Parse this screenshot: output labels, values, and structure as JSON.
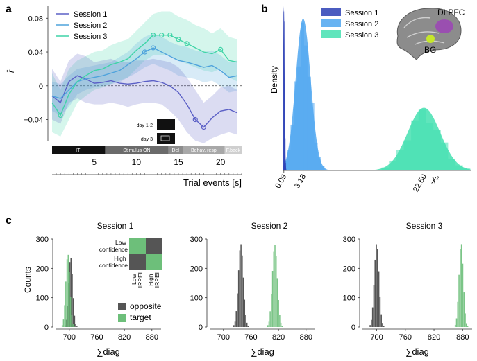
{
  "panel_a": {
    "label": "a",
    "chart_data": {
      "type": "line",
      "ylabel": "r̄",
      "xlabel": "Trial events [s]",
      "xlim": [
        0,
        22.5
      ],
      "ylim": [
        -0.065,
        0.095
      ],
      "yticks": [
        "0.08",
        "0.04",
        "0",
        "−0.04"
      ],
      "ytick_values": [
        0.08,
        0.04,
        0,
        -0.04
      ],
      "xticks": [
        "5",
        "10",
        "15",
        "20"
      ],
      "xtick_values": [
        5,
        10,
        15,
        20
      ],
      "x": [
        0,
        1,
        2,
        3,
        4,
        5,
        6,
        7,
        8,
        9,
        10,
        11,
        12,
        13,
        14,
        15,
        16,
        17,
        18,
        19,
        20,
        21,
        22
      ],
      "series": [
        {
          "name": "Session 1",
          "color": "#5b60c6",
          "values": [
            -0.012,
            -0.02,
            0.005,
            0.012,
            0.008,
            0.003,
            0.004,
            0.006,
            0.003,
            0.002,
            0.003,
            0.005,
            0.006,
            0.004,
            0.0,
            -0.008,
            -0.022,
            -0.04,
            -0.049,
            -0.038,
            -0.03,
            -0.028,
            -0.032
          ],
          "lower": [
            -0.04,
            -0.045,
            -0.02,
            -0.015,
            -0.02,
            -0.022,
            -0.022,
            -0.02,
            -0.022,
            -0.025,
            -0.022,
            -0.02,
            -0.02,
            -0.022,
            -0.03,
            -0.04,
            -0.055,
            -0.065,
            -0.068,
            -0.062,
            -0.058,
            -0.055,
            -0.058
          ],
          "upper": [
            0.02,
            0.005,
            0.03,
            0.038,
            0.035,
            0.028,
            0.03,
            0.032,
            0.028,
            0.028,
            0.03,
            0.03,
            0.032,
            0.03,
            0.028,
            0.022,
            0.01,
            -0.005,
            -0.02,
            -0.012,
            -0.002,
            0.0,
            -0.005
          ],
          "highlight_x": [
            17,
            18
          ]
        },
        {
          "name": "Session 2",
          "color": "#4fa3dc",
          "values": [
            -0.012,
            -0.015,
            -0.005,
            0.005,
            0.008,
            0.01,
            0.012,
            0.015,
            0.018,
            0.025,
            0.032,
            0.04,
            0.045,
            0.04,
            0.035,
            0.03,
            0.028,
            0.025,
            0.022,
            0.024,
            0.018,
            0.01,
            0.012
          ],
          "lower": [
            -0.03,
            -0.035,
            -0.025,
            -0.01,
            -0.005,
            -0.002,
            0.0,
            0.002,
            0.004,
            0.01,
            0.015,
            0.022,
            0.026,
            0.022,
            0.018,
            0.012,
            0.01,
            0.008,
            0.004,
            0.006,
            0.0,
            -0.008,
            -0.006
          ],
          "upper": [
            0.005,
            0.002,
            0.012,
            0.02,
            0.022,
            0.024,
            0.026,
            0.028,
            0.034,
            0.04,
            0.05,
            0.058,
            0.062,
            0.058,
            0.052,
            0.048,
            0.046,
            0.042,
            0.04,
            0.042,
            0.036,
            0.028,
            0.03
          ],
          "highlight_x": [
            11,
            12
          ]
        },
        {
          "name": "Session 3",
          "color": "#3fd4a7",
          "values": [
            -0.02,
            -0.035,
            -0.01,
            0.005,
            0.012,
            0.018,
            0.02,
            0.025,
            0.028,
            0.032,
            0.042,
            0.05,
            0.06,
            0.06,
            0.06,
            0.055,
            0.05,
            0.045,
            0.04,
            0.038,
            0.043,
            0.03,
            0.028
          ],
          "lower": [
            -0.055,
            -0.06,
            -0.04,
            -0.02,
            -0.012,
            -0.005,
            -0.002,
            0.002,
            0.006,
            0.01,
            0.02,
            0.03,
            0.036,
            0.036,
            0.036,
            0.03,
            0.026,
            0.022,
            0.018,
            0.016,
            0.02,
            0.01,
            0.005
          ],
          "upper": [
            0.015,
            -0.005,
            0.02,
            0.03,
            0.035,
            0.04,
            0.042,
            0.048,
            0.052,
            0.055,
            0.065,
            0.075,
            0.085,
            0.088,
            0.088,
            0.082,
            0.078,
            0.072,
            0.068,
            0.062,
            0.068,
            0.058,
            0.055
          ],
          "highlight_x": [
            1,
            12,
            13,
            14,
            15,
            16,
            20
          ]
        }
      ]
    },
    "legend": [
      "Session 1",
      "Session 2",
      "Session 3"
    ],
    "inset_labels": [
      "day 1-2",
      "day 3"
    ],
    "events": [
      {
        "label": "ITI",
        "start": 0,
        "end": 6.3,
        "color": "#111111",
        "text_color": "#ffffff"
      },
      {
        "label": "Stimulus ON",
        "start": 6.3,
        "end": 13.8,
        "color": "#6b6b6b",
        "text_color": "#ffffff"
      },
      {
        "label": "Del",
        "start": 13.8,
        "end": 15.5,
        "color": "#8c8c8c",
        "text_color": "#ffffff"
      },
      {
        "label": "Behav. resp",
        "start": 15.5,
        "end": 20.5,
        "color": "#a8a8a8",
        "text_color": "#ffffff"
      },
      {
        "label": "F.back",
        "start": 20.5,
        "end": 22.5,
        "color": "#cfcfcf",
        "text_color": "#ffffff"
      }
    ]
  },
  "panel_b": {
    "label": "b",
    "chart_data": {
      "type": "area",
      "ylabel": "Density",
      "xlabel": "χ²",
      "xticks": [
        "0.09",
        "3.18",
        "22.50"
      ],
      "xtick_values": [
        0.09,
        3.18,
        22.5
      ],
      "xlim": [
        0,
        30
      ],
      "series": [
        {
          "name": "Session 1",
          "color": "#2c3fb5",
          "mean": 0.09,
          "sd": 0.12,
          "peak": 1.0
        },
        {
          "name": "Session 2",
          "color": "#4ea6f0",
          "mean": 3.18,
          "sd": 1.2,
          "peak": 0.92
        },
        {
          "name": "Session 3",
          "color": "#44e0b0",
          "mean": 22.5,
          "sd": 2.6,
          "peak": 0.38
        }
      ]
    },
    "legend": [
      "Session 1",
      "Session 2",
      "Session 3"
    ],
    "brain_labels": [
      "DLPFC",
      "BG"
    ]
  },
  "panel_c": {
    "label": "c",
    "ylabel": "Counts",
    "xlabel": "∑diag",
    "legend": [
      "opposite",
      "target"
    ],
    "legend_colors": [
      "#555555",
      "#6dbf7a"
    ],
    "matrix": {
      "row_labels": [
        "Low confidence",
        "High confidence"
      ],
      "col_labels": [
        "Low IRPEI",
        "High IRPEI"
      ],
      "cells": [
        [
          "#6dbf7a",
          "#555555"
        ],
        [
          "#555555",
          "#6dbf7a"
        ]
      ]
    },
    "chart_data": [
      {
        "type": "bar",
        "title": "Session 1",
        "xlim": [
          670,
          900
        ],
        "ylim": [
          0,
          300
        ],
        "xticks": [
          "700",
          "760",
          "820",
          "880"
        ],
        "xtick_values": [
          700,
          760,
          820,
          880
        ],
        "yticks": [
          "0",
          "100",
          "200",
          "300"
        ],
        "ytick_values": [
          0,
          100,
          200,
          300
        ],
        "series": [
          {
            "name": "opposite",
            "mean": 703,
            "sd": 4.5,
            "peak": 240
          },
          {
            "name": "target",
            "mean": 697,
            "sd": 4.5,
            "peak": 250
          }
        ]
      },
      {
        "type": "bar",
        "title": "Session 2",
        "xlim": [
          670,
          900
        ],
        "ylim": [
          0,
          300
        ],
        "xticks": [
          "700",
          "760",
          "820",
          "880"
        ],
        "xtick_values": [
          700,
          760,
          820,
          880
        ],
        "yticks": [
          "0",
          "100",
          "200",
          "300"
        ],
        "ytick_values": [
          0,
          100,
          200,
          300
        ],
        "series": [
          {
            "name": "opposite",
            "mean": 738,
            "sd": 5.5,
            "peak": 283
          },
          {
            "name": "target",
            "mean": 812,
            "sd": 5.5,
            "peak": 280
          }
        ]
      },
      {
        "type": "bar",
        "title": "Session 3",
        "xlim": [
          670,
          900
        ],
        "ylim": [
          0,
          300
        ],
        "xticks": [
          "700",
          "760",
          "820",
          "880"
        ],
        "xtick_values": [
          700,
          760,
          820,
          880
        ],
        "yticks": [
          "0",
          "100",
          "200",
          "300"
        ],
        "ytick_values": [
          0,
          100,
          200,
          300
        ],
        "series": [
          {
            "name": "opposite",
            "mean": 700,
            "sd": 5,
            "peak": 285
          },
          {
            "name": "target",
            "mean": 877,
            "sd": 4.5,
            "peak": 287
          }
        ]
      }
    ]
  }
}
